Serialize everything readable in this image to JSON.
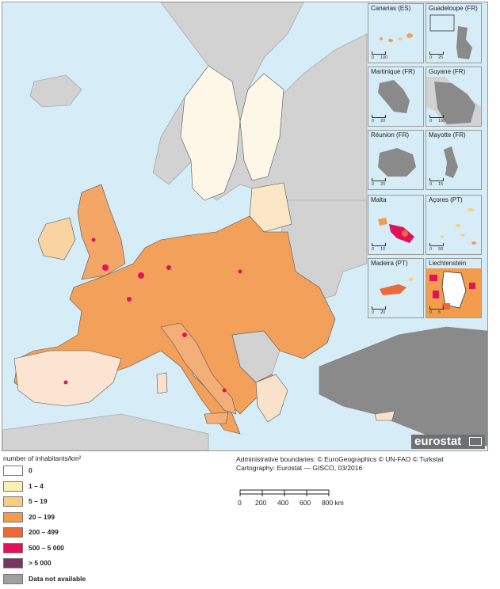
{
  "insets": [
    {
      "name": "Canarias (ES)",
      "scale": [
        "0",
        "100"
      ]
    },
    {
      "name": "Guadeloupe (FR)",
      "scale": [
        "0",
        "25"
      ]
    },
    {
      "name": "Martinique (FR)",
      "scale": [
        "0",
        "20"
      ]
    },
    {
      "name": "Guyane (FR)",
      "scale": [
        "0",
        "100"
      ]
    },
    {
      "name": "Réunion (FR)",
      "scale": [
        "0",
        "20"
      ]
    },
    {
      "name": "Mayotte (FR)",
      "scale": [
        "0",
        "15"
      ]
    },
    {
      "name": "Malta",
      "scale": [
        "0",
        "10"
      ]
    },
    {
      "name": "Açores (PT)",
      "scale": [
        "0",
        "50"
      ]
    },
    {
      "name": "Madeira (PT)",
      "scale": [
        "0",
        "20"
      ]
    },
    {
      "name": "Liechtenstein",
      "scale": [
        "0",
        "5"
      ]
    }
  ],
  "logo": {
    "text": "eurostat"
  },
  "legend": {
    "title": "number of inhabitants/km²",
    "items": [
      {
        "label": "0",
        "color": "#ffffff"
      },
      {
        "label": "1 – 4",
        "color": "#fdf0b3"
      },
      {
        "label": "5 – 19",
        "color": "#f9cc7e"
      },
      {
        "label": "20 – 199",
        "color": "#f29c4e"
      },
      {
        "label": "200 – 499",
        "color": "#eb6a3a"
      },
      {
        "label": "500 – 5 000",
        "color": "#e0135a"
      },
      {
        "label": "> 5 000",
        "color": "#7b3461"
      },
      {
        "label": "Data not available",
        "color": "#a0a0a0"
      }
    ]
  },
  "credits": {
    "line1": "Administrative boundaries: © EuroGeographics © UN-FAO © Turkstat",
    "line2": "Cartography: Eurostat — GISCO, 03/2016"
  },
  "scalebar": {
    "labels": [
      "0",
      "200",
      "400",
      "600",
      "800 km"
    ]
  },
  "colors": {
    "sea": "#d6ecf6",
    "non_eu": "#d2d2d2",
    "no_data": "#8a8a8a"
  }
}
